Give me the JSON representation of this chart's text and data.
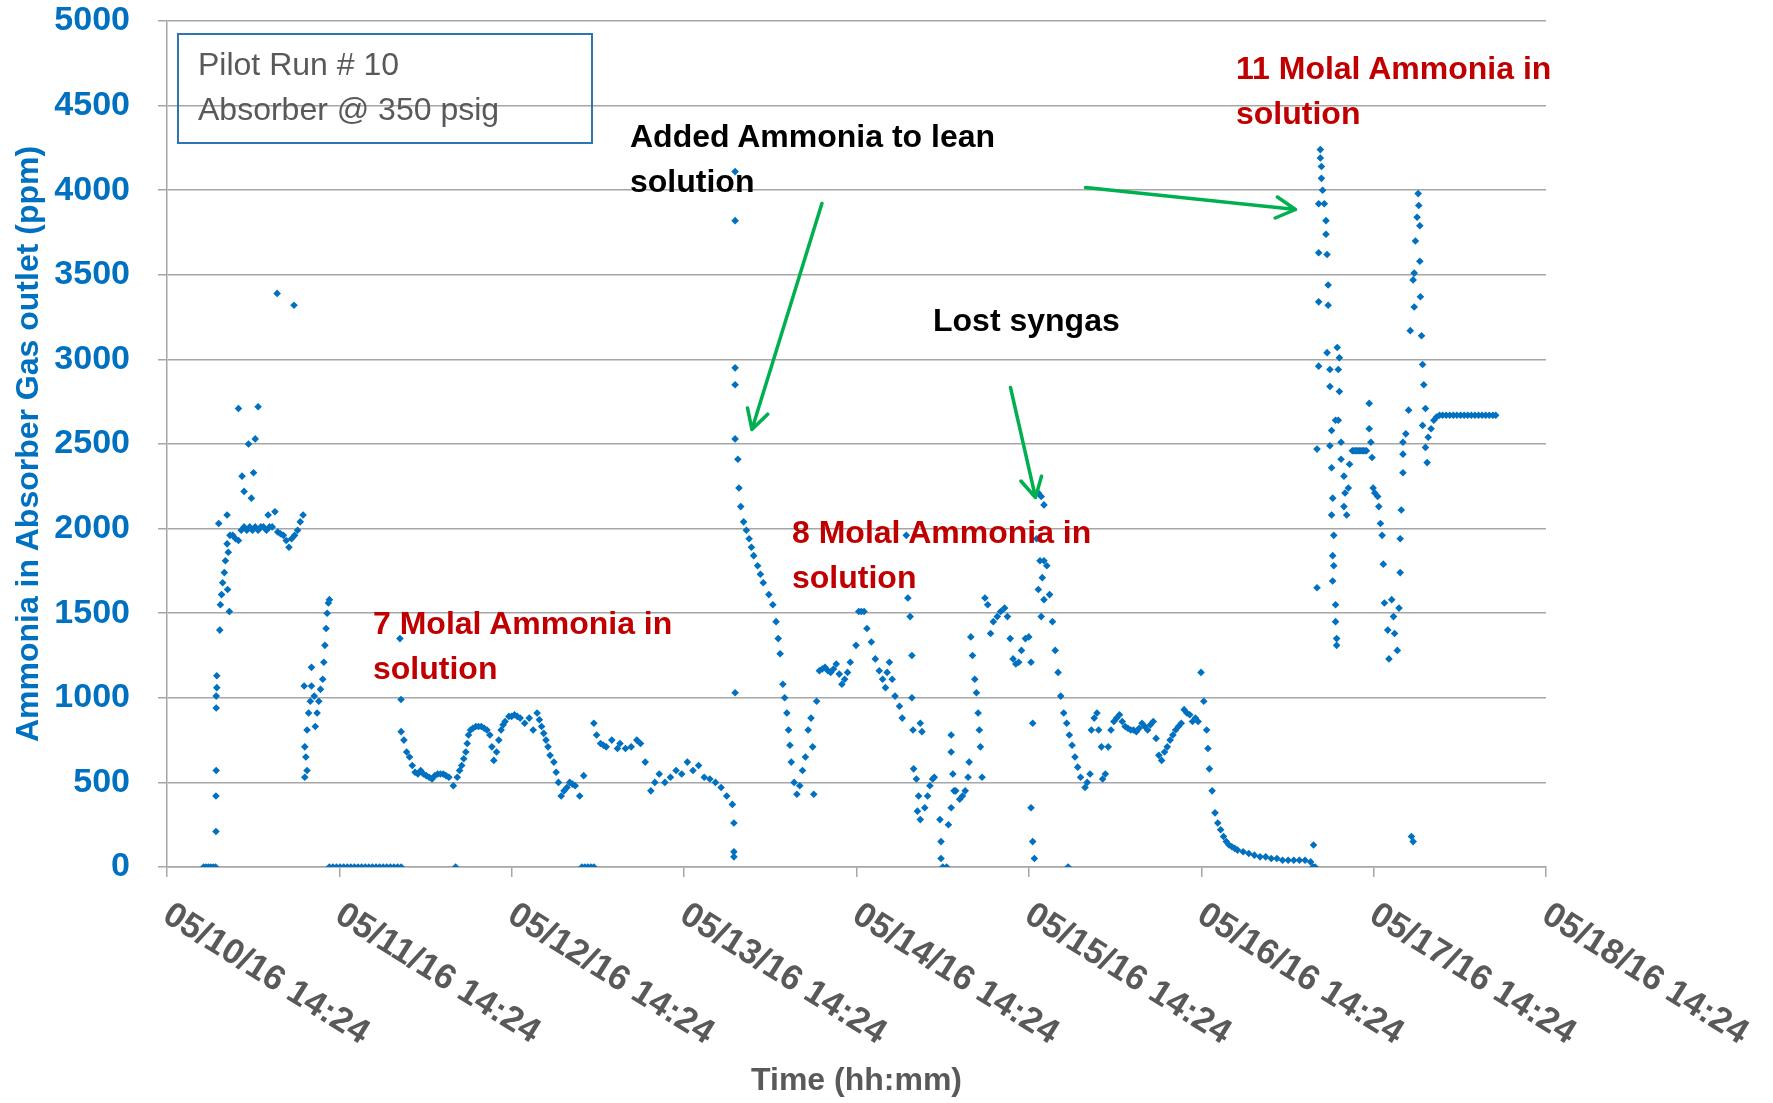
{
  "chart_data": {
    "type": "scatter",
    "title": "Pilot Run # 10",
    "subtitle": "Absorber @ 350 psig",
    "xlabel": "Time (hh:mm)",
    "ylabel": "Ammonia in Absorber Gas outlet (ppm)",
    "color": "#0070c0",
    "marker": "diamond",
    "grid": "y",
    "xlim": [
      "--05-10T14:24",
      "--05-18T14:24"
    ],
    "xticks": [
      {
        "value": "--05-10T14:24",
        "label": "05/10/16 14:24"
      },
      {
        "value": "--05-11T14:24",
        "label": "05/11/16 14:24"
      },
      {
        "value": "--05-12T14:24",
        "label": "05/12/16 14:24"
      },
      {
        "value": "--05-13T14:24",
        "label": "05/13/16 14:24"
      },
      {
        "value": "--05-14T14:24",
        "label": "05/14/16 14:24"
      },
      {
        "value": "--05-15T14:24",
        "label": "05/15/16 14:24"
      },
      {
        "value": "--05-16T14:24",
        "label": "05/16/16 14:24"
      },
      {
        "value": "--05-17T14:24",
        "label": "05/17/16 14:24"
      },
      {
        "value": "--05-18T14:24",
        "label": "05/18/16 14:24"
      }
    ],
    "ylim": [
      0,
      5000
    ],
    "yticks": [
      0,
      500,
      1000,
      1500,
      2000,
      2500,
      3000,
      3500,
      4000,
      4500,
      5000
    ],
    "annotations": [
      "Added Ammonia to lean solution",
      "Lost syngas",
      "7 Molal Ammonia in solution",
      "8 Molal Ammonia in solution",
      "11 Molal Ammonia in solution"
    ],
    "x": [
      "--05-10T19:30",
      "--05-10T19:50",
      "--05-10T20:10",
      "--05-10T20:30",
      "--05-10T20:50",
      "--05-10T21:10",
      "--05-10T21:13",
      "--05-10T21:13",
      "--05-10T21:15",
      "--05-10T21:15",
      "--05-10T21:15",
      "--05-10T21:20",
      "--05-10T21:20",
      "--05-10T21:36",
      "--05-10T21:45",
      "--05-10T21:50",
      "--05-10T22:00",
      "--05-10T22:09",
      "--05-10T22:23",
      "--05-10T22:32",
      "--05-10T22:46",
      "--05-10T22:46",
      "--05-10T22:50",
      "--05-10T22:56",
      "--05-10T23:05",
      "--05-10T23:10",
      "--05-10T23:33",
      "--05-10T23:57",
      "--05-11T00:21",
      "--05-11T00:21",
      "--05-11T00:44",
      "--05-11T00:51",
      "--05-11T01:08",
      "--05-11T01:08",
      "--05-11T01:31",
      "--05-11T01:45",
      "--05-11T01:55",
      "--05-11T02:09",
      "--05-11T02:18",
      "--05-11T02:27",
      "--05-11T02:41",
      "--05-11T02:41",
      "--05-11T03:05",
      "--05-11T03:05",
      "--05-11T03:28",
      "--05-11T03:50",
      "--05-11T04:15",
      "--05-11T04:29",
      "--05-11T04:40",
      "--05-11T05:03",
      "--05-11T05:26",
      "--05-11T05:44",
      "--05-11T05:49",
      "--05-11T06:12",
      "--05-11T06:36",
      "--05-11T07:00",
      "--05-11T07:23",
      "--05-11T07:45",
      "--05-11T08:05",
      "--05-11T08:10",
      "--05-11T08:35",
      "--05-11T08:57",
      "--05-11T09:21",
      "--05-11T09:30",
      "--05-11T09:35",
      "--05-11T09:35",
      "--05-11T09:44",
      "--05-11T09:54",
      "--05-11T09:54",
      "--05-11T10:07",
      "--05-11T10:21",
      "--05-11T10:31",
      "--05-11T10:31",
      "--05-11T10:54",
      "--05-11T11:03",
      "--05-11T11:18",
      "--05-11T11:32",
      "--05-11T11:46",
      "--05-11T12:05",
      "--05-11T12:14",
      "--05-11T12:23",
      "--05-11T12:33",
      "--05-11T12:42",
      "--05-11T12:52",
      "--05-11T13:01",
      "--05-11T13:00",
      "--05-11T13:30",
      "--05-11T14:00",
      "--05-11T14:30",
      "--05-11T15:00",
      "--05-11T15:30",
      "--05-11T16:00",
      "--05-11T16:30",
      "--05-11T17:00",
      "--05-11T17:30",
      "--05-11T18:00",
      "--05-11T18:30",
      "--05-11T19:00",
      "--05-11T19:30",
      "--05-11T20:00",
      "--05-11T20:30",
      "--05-11T21:00",
      "--05-11T21:30",
      "--05-11T22:00",
      "--05-11T22:30",
      "--05-11T23:00",
      "--05-11T22:50",
      "--05-11T22:59",
      "--05-11T23:00",
      "--05-11T23:23",
      "--05-11T23:46",
      "--05-12T00:10",
      "--05-12T00:33",
      "--05-12T00:56",
      "--05-12T01:20",
      "--05-12T01:43",
      "--05-12T02:07",
      "--05-12T02:30",
      "--05-12T02:54",
      "--05-12T03:18",
      "--05-12T03:41",
      "--05-12T04:05",
      "--05-12T04:28",
      "--05-12T04:52",
      "--05-12T05:15",
      "--05-12T05:39",
      "--05-12T06:16",
      "--05-12T06:35",
      "--05-12T06:49",
      "--05-12T07:08",
      "--05-12T07:26",
      "--05-12T07:43",
      "--05-12T08:00",
      "--05-12T08:12",
      "--05-12T08:23",
      "--05-12T08:40",
      "--05-12T09:00",
      "--05-12T09:24",
      "--05-12T09:47",
      "--05-12T10:10",
      "--05-12T10:34",
      "--05-12T10:57",
      "--05-12T11:21",
      "--05-12T11:38",
      "--05-12T11:54",
      "--05-12T12:17",
      "--05-12T12:36",
      "--05-12T12:55",
      "--05-12T13:12",
      "--05-12T13:28",
      "--05-12T14:00",
      "--05-12T14:23",
      "--05-12T14:47",
      "--05-12T15:10",
      "--05-12T15:34",
      "--05-12T16:12",
      "--05-12T16:50",
      "--05-12T17:23",
      "--05-12T17:56",
      "--05-12T18:15",
      "--05-12T18:33",
      "--05-12T18:51",
      "--05-12T19:10",
      "--05-12T19:27",
      "--05-12T19:44",
      "--05-12T20:16",
      "--05-12T20:35",
      "--05-12T20:54",
      "--05-12T21:17",
      "--05-12T21:41",
      "--05-12T22:05",
      "--05-12T22:28",
      "--05-12T22:51",
      "--05-12T23:14",
      "--05-12T23:52",
      "--05-13T00:25",
      "--05-13T00:10",
      "--05-13T00:35",
      "--05-13T01:00",
      "--05-13T01:25",
      "--05-13T01:50",
      "--05-13T01:50",
      "--05-13T02:13",
      "--05-13T02:46",
      "--05-13T03:10",
      "--05-13T03:33",
      "--05-13T04:20",
      "--05-13T05:07",
      "--05-13T05:28",
      "--05-13T06:14",
      "--05-13T07:02",
      "--05-13T07:49",
      "--05-13T08:20",
      "--05-13T08:59",
      "--05-13T09:46",
      "--05-13T10:19",
      "--05-13T10:56",
      "--05-13T11:43",
      "--05-13T12:30",
      "--05-13T13:17",
      "--05-13T14:04",
      "--05-13T14:51",
      "--05-13T15:38",
      "--05-13T16:25",
      "--05-13T17:12",
      "--05-13T17:59",
      "--05-13T18:46",
      "--05-13T19:33",
      "--05-13T20:20",
      "--05-13T21:07",
      "--05-13T21:20",
      "--05-13T21:20",
      "--05-13T21:20",
      "--05-13T21:30",
      "--05-13T21:30",
      "--05-13T21:30",
      "--05-13T21:30",
      "--05-13T21:30",
      "--05-13T21:30",
      "--05-13T21:53",
      "--05-13T22:02",
      "--05-13T22:17",
      "--05-13T22:41",
      "--05-13T23:04",
      "--05-13T23:27",
      "--05-13T23:46",
      "--05-14T00:05",
      "--05-14T00:38",
      "--05-14T01:01",
      "--05-14T01:25",
      "--05-14T02:12",
      "--05-14T02:45",
      "--05-14T03:12",
      "--05-14T03:30",
      "--05-14T03:46",
      "--05-14T04:09",
      "--05-14T04:24",
      "--05-14T04:42",
      "--05-14T04:56",
      "--05-14T05:08",
      "--05-14T05:19",
      "--05-14T05:43",
      "--05-14T06:06",
      "--05-14T06:30",
      "--05-14T06:53",
      "--05-14T07:17",
      "--05-14T07:40",
      "--05-14T08:04",
      "--05-14T08:18",
      "--05-14T08:27",
      "--05-14T08:51",
      "--05-14T09:14",
      "--05-14T09:38",
      "--05-14T10:01",
      "--05-14T10:25",
      "--05-14T10:48",
      "--05-14T11:12",
      "--05-14T11:35",
      "--05-14T12:00",
      "--05-14T12:22",
      "--05-14T12:45",
      "--05-14T13:09",
      "--05-14T13:32",
      "--05-14T14:20",
      "--05-14T14:43",
      "--05-14T15:04",
      "--05-14T15:27",
      "--05-14T15:51",
      "--05-14T16:28",
      "--05-14T17:01",
      "--05-14T17:34",
      "--05-14T18:02",
      "--05-14T18:26",
      "--05-14T18:40",
      "--05-14T18:59",
      "--05-14T19:22",
      "--05-14T19:46",
      "--05-14T20:23",
      "--05-14T20:46",
      "--05-14T21:20",
      "--05-14T21:33",
      "--05-14T21:52",
      "--05-14T22:07",
      "--05-14T22:07",
      "--05-14T22:16",
      "--05-14T22:21",
      "--05-14T22:44",
      "--05-14T22:53",
      "--05-14T23:03",
      "--05-14T23:17",
      "--05-14T23:17",
      "--05-14T23:31",
      "--05-14T23:54",
      "--05-15T00:18",
      "--05-15T00:37",
      "--05-15T01:00",
      "--05-15T01:14",
      "--05-15T02:01",
      "--05-15T02:10",
      "--05-15T02:10",
      "--05-15T02:25",
      "--05-15T02:57",
      "--05-15T03:12",
      "--05-15T03:35",
      "--05-15T03:35",
      "--05-15T03:35",
      "--05-15T03:49",
      "--05-15T03:59",
      "--05-15T04:13",
      "--05-15T04:46",
      "--05-15T05:09",
      "--05-15T05:32",
      "--05-15T05:56",
      "--05-15T06:05",
      "--05-15T06:19",
      "--05-15T06:33",
      "--05-15T06:52",
      "--05-15T07:06",
      "--05-15T07:20",
      "--05-15T07:30",
      "--05-15T07:39",
      "--05-15T07:53",
      "--05-15T08:17",
      "--05-15T08:40",
      "--05-15T09:04",
      "--05-15T09:27",
      "--05-15T10:00",
      "--05-15T10:28",
      "--05-15T11:01",
      "--05-15T11:25",
      "--05-15T11:48",
      "--05-15T12:12",
      "--05-15T12:35",
      "--05-15T12:59",
      "--05-15T13:22",
      "--05-15T13:55",
      "--05-15T14:23",
      "--05-15T14:42",
      "--05-15T14:56",
      "--05-15T14:42",
      "--05-15T14:56",
      "--05-15T15:10",
      "--05-15T15:29",
      "--05-15T15:43",
      "--05-15T15:43",
      "--05-15T15:57",
      "--05-15T16:07",
      "--05-15T16:07",
      "--05-15T16:16",
      "--05-15T16:30",
      "--05-15T16:30",
      "--05-15T16:30",
      "--05-15T16:54",
      "--05-15T17:17",
      "--05-15T17:41",
      "--05-15T18:04",
      "--05-15T18:28",
      "--05-15T18:50",
      "--05-15T19:15",
      "--05-15T19:40",
      "--05-15T19:52",
      "--05-15T20:02",
      "--05-15T20:25",
      "--05-15T20:49",
      "--05-15T21:12",
      "--05-15T21:36",
      "--05-15T22:13",
      "--05-15T22:31",
      "--05-15T22:55",
      "--05-15T23:06",
      "--05-15T23:30",
      "--05-15T23:53",
      "--05-16T00:07",
      "--05-16T00:30",
      "--05-16T00:40",
      "--05-16T01:03",
      "--05-16T01:27",
      "--05-16T01:50",
      "--05-16T02:14",
      "--05-16T02:37",
      "--05-16T03:01",
      "--05-16T03:24",
      "--05-16T03:48",
      "--05-16T04:11",
      "--05-16T04:35",
      "--05-16T04:58",
      "--05-16T05:22",
      "--05-16T05:45",
      "--05-16T06:09",
      "--05-16T06:32",
      "--05-16T06:56",
      "--05-16T07:19",
      "--05-16T07:43",
      "--05-16T08:07",
      "--05-16T08:30",
      "--05-16T08:53",
      "--05-16T09:17",
      "--05-16T09:40",
      "--05-16T10:04",
      "--05-16T10:27",
      "--05-16T10:50",
      "--05-16T11:14",
      "--05-16T11:37",
      "--05-16T12:01",
      "--05-16T12:24",
      "--05-16T12:48",
      "--05-16T13:11",
      "--05-16T13:35",
      "--05-16T13:58",
      "--05-16T14:22",
      "--05-16T14:45",
      "--05-16T15:09",
      "--05-16T15:20",
      "--05-16T15:32",
      "--05-16T15:55",
      "--05-16T16:19",
      "--05-16T16:42",
      "--05-16T17:06",
      "--05-16T17:30",
      "--05-16T17:53",
      "--05-16T18:16",
      "--05-16T18:40",
      "--05-16T19:04",
      "--05-16T19:27",
      "--05-16T20:14",
      "--05-16T21:01",
      "--05-16T21:48",
      "--05-16T22:35",
      "--05-16T23:22",
      "--05-17T00:09",
      "--05-17T00:56",
      "--05-17T01:43",
      "--05-17T02:30",
      "--05-17T03:17",
      "--05-17T04:04",
      "--05-17T04:51",
      "--05-17T05:38",
      "--05-17T05:58",
      "--05-17T06:02",
      "--05-17T06:15",
      "--05-17T06:31",
      "--05-17T06:31",
      "--05-17T06:45",
      "--05-17T06:45",
      "--05-17T06:45",
      "--05-17T06:45",
      "--05-17T06:59",
      "--05-17T06:59",
      "--05-17T07:08",
      "--05-17T07:08",
      "--05-17T07:18",
      "--05-17T07:32",
      "--05-17T07:46",
      "--05-17T07:46",
      "--05-17T07:55",
      "--05-17T07:55",
      "--05-17T08:04",
      "--05-17T08:04",
      "--05-17T08:19",
      "--05-17T08:19",
      "--05-17T08:19",
      "--05-17T08:33",
      "--05-17T08:33",
      "--05-17T08:33",
      "--05-17T08:42",
      "--05-17T08:42",
      "--05-17T08:42",
      "--05-17T08:51",
      "--05-17T08:51",
      "--05-17T09:06",
      "--05-17T09:06",
      "--05-17T09:06",
      "--05-17T09:15",
      "--05-17T09:15",
      "--05-17T09:20",
      "--05-17T09:29",
      "--05-17T09:29",
      "--05-17T09:38",
      "--05-17T09:38",
      "--05-17T09:52",
      "--05-17T09:52",
      "--05-17T10:16",
      "--05-17T10:16",
      "--05-17T10:25",
      "--05-17T10:39",
      "--05-17T10:53",
      "--05-17T11:03",
      "--05-17T11:26",
      "--05-17T11:38",
      "--05-17T11:50",
      "--05-17T12:01",
      "--05-17T12:13",
      "--05-17T12:25",
      "--05-17T12:37",
      "--05-17T12:49",
      "--05-17T13:00",
      "--05-17T13:12",
      "--05-17T13:24",
      "--05-17T13:47",
      "--05-17T13:47",
      "--05-17T14:01",
      "--05-17T14:11",
      "--05-17T14:20",
      "--05-17T14:34",
      "--05-17T14:58",
      "--05-17T15:07",
      "--05-17T15:21",
      "--05-17T15:35",
      "--05-17T15:45",
      "--05-17T15:54",
      "--05-17T16:22",
      "--05-17T16:32",
      "--05-17T16:55",
      "--05-17T17:10",
      "--05-17T17:19",
      "--05-17T17:42",
      "--05-17T17:56",
      "--05-17T18:06",
      "--05-17T18:06",
      "--05-17T18:15",
      "--05-17T18:29",
      "--05-17T18:29",
      "--05-17T18:29",
      "--05-17T18:53",
      "--05-17T19:16",
      "--05-17T19:30",
      "--05-17T19:40",
      "--05-17T19:54",
      "--05-17T19:54",
      "--05-17T20:03",
      "--05-17T20:03",
      "--05-17T20:13",
      "--05-17T20:27",
      "--05-17T20:36",
      "--05-17T20:41",
      "--05-17T20:50",
      "--05-17T20:50",
      "--05-17T20:55",
      "--05-17T21:04",
      "--05-17T21:13",
      "--05-17T21:13",
      "--05-17T21:23",
      "--05-17T21:37",
      "--05-17T21:37",
      "--05-17T21:51",
      "--05-17T22:00",
      "--05-17T22:24",
      "--05-17T22:47",
      "--05-17T23:10",
      "--05-17T23:34",
      "--05-18T00:00",
      "--05-18T00:30",
      "--05-18T01:00",
      "--05-18T01:30",
      "--05-18T02:00",
      "--05-18T02:30",
      "--05-18T03:00",
      "--05-18T03:30",
      "--05-18T04:00",
      "--05-18T04:30",
      "--05-18T05:00",
      "--05-18T05:30",
      "--05-18T06:00",
      "--05-18T06:30",
      "--05-18T07:00",
      "--05-18T07:24"
    ],
    "values": [
      0,
      0,
      0,
      0,
      0,
      0,
      210,
      420,
      570,
      940,
      1010,
      1060,
      1130,
      2030,
      1400,
      1550,
      1610,
      1680,
      1740,
      1810,
      1910,
      2080,
      1640,
      1860,
      1510,
      1960,
      1960,
      1940,
      1930,
      2710,
      1990,
      2310,
      2010,
      2220,
      1990,
      2500,
      2010,
      2180,
      1990,
      2330,
      2010,
      2530,
      1990,
      2720,
      2010,
      2010,
      1990,
      2080,
      2010,
      2010,
      2100,
      3390,
      1980,
      1970,
      1960,
      1930,
      1890,
      1940,
      3320,
      1960,
      1990,
      2040,
      2080,
      1070,
      530,
      710,
      650,
      570,
      810,
      910,
      980,
      1070,
      1180,
      1010,
      830,
      910,
      980,
      1050,
      1110,
      1210,
      1310,
      1410,
      1500,
      1560,
      1580,
      0,
      0,
      0,
      0,
      0,
      0,
      0,
      0,
      0,
      0,
      0,
      0,
      0,
      0,
      0,
      0,
      0,
      0,
      0,
      0,
      0,
      1350,
      990,
      800,
      750,
      680,
      650,
      600,
      560,
      550,
      570,
      550,
      540,
      530,
      520,
      540,
      550,
      550,
      550,
      540,
      530,
      480,
      0,
      530,
      570,
      600,
      640,
      680,
      730,
      780,
      810,
      820,
      830,
      830,
      830,
      820,
      810,
      780,
      710,
      630,
      680,
      750,
      810,
      840,
      860,
      890,
      890,
      900,
      890,
      880,
      850,
      880,
      810,
      910,
      870,
      830,
      790,
      750,
      710,
      660,
      620,
      560,
      500,
      420,
      450,
      470,
      500,
      490,
      480,
      420,
      540,
      0,
      0,
      0,
      0,
      0,
      850,
      780,
      730,
      720,
      710,
      750,
      700,
      730,
      700,
      710,
      750,
      730,
      620,
      450,
      500,
      550,
      500,
      530,
      570,
      550,
      620,
      570,
      600,
      530,
      520,
      500,
      470,
      420,
      370,
      260,
      90,
      60,
      1030,
      2530,
      2850,
      2950,
      3820,
      4110,
      2410,
      2240,
      2130,
      2040,
      1990,
      1940,
      1890,
      1840,
      1780,
      1730,
      1680,
      1610,
      1550,
      1450,
      1350,
      1260,
      1080,
      1000,
      910,
      810,
      720,
      620,
      500,
      430,
      480,
      570,
      650,
      810,
      880,
      710,
      430,
      980,
      1160,
      1170,
      1180,
      1160,
      1150,
      1170,
      1200,
      1140,
      1080,
      1110,
      1150,
      1210,
      1310,
      1510,
      1510,
      1510,
      1410,
      1330,
      1230,
      1160,
      1110,
      1060,
      1150,
      1210,
      1110,
      1010,
      950,
      880,
      1960,
      1590,
      1480,
      1250,
      1000,
      810,
      580,
      520,
      330,
      420,
      280,
      850,
      800,
      350,
      420,
      480,
      520,
      530,
      280,
      150,
      50,
      0,
      0,
      250,
      780,
      680,
      350,
      550,
      450,
      450,
      400,
      420,
      450,
      530,
      620,
      1360,
      1250,
      1110,
      1030,
      910,
      810,
      710,
      530,
      1590,
      1550,
      1380,
      1450,
      1480,
      1510,
      1530,
      1480,
      1350,
      1230,
      1200,
      1210,
      1280,
      1350,
      1360,
      1210,
      850,
      350,
      150,
      50,
      1940,
      2210,
      1640,
      1810,
      2190,
      1480,
      1710,
      2140,
      1810,
      1580,
      1780,
      1610,
      1450,
      1280,
      1150,
      1010,
      910,
      850,
      0,
      780,
      720,
      650,
      590,
      530,
      470,
      500,
      550,
      810,
      880,
      910,
      810,
      710,
      520,
      550,
      710,
      810,
      860,
      880,
      900,
      860,
      830,
      820,
      810,
      810,
      800,
      820,
      850,
      830,
      810,
      840,
      860,
      760,
      660,
      630,
      680,
      710,
      750,
      780,
      810,
      830,
      850,
      930,
      910,
      900,
      860,
      880,
      860,
      1150,
      980,
      810,
      700,
      580,
      450,
      320,
      260,
      220,
      180,
      150,
      130,
      120,
      110,
      100,
      90,
      80,
      70,
      60,
      60,
      50,
      50,
      40,
      40,
      40,
      40,
      40,
      30,
      0,
      130,
      0,
      1650,
      2470,
      2960,
      3340,
      3630,
      3920,
      4240,
      4190,
      4140,
      4070,
      4000,
      3920,
      3820,
      3740,
      3620,
      3040,
      3440,
      3320,
      2940,
      2840,
      2490,
      2580,
      2360,
      2080,
      2180,
      1840,
      1690,
      1960,
      1780,
      1550,
      1450,
      2640,
      1350,
      1310,
      3070,
      2940,
      2640,
      3010,
      2810,
      2510,
      2410,
      2310,
      2130,
      2210,
      2080,
      2240,
      2380,
      2460,
      2460,
      2460,
      2460,
      2460,
      2460,
      2460,
      2460,
      2460,
      2460,
      2460,
      2740,
      2590,
      2510,
      2420,
      2240,
      2210,
      2190,
      2130,
      2030,
      1960,
      1790,
      1560,
      1400,
      1230,
      1580,
      1480,
      1380,
      1280,
      1530,
      1740,
      1940,
      2110,
      2330,
      2440,
      2510,
      2560,
      2700,
      3170,
      180,
      150,
      3470,
      3510,
      3310,
      3700,
      3840,
      3980,
      3910,
      3790,
      3580,
      3370,
      3140,
      2970,
      2610,
      2850,
      2710,
      2480,
      2390,
      2540,
      2590,
      2640,
      2660,
      2670,
      2670,
      2670,
      2670,
      2670,
      2670,
      2670,
      2670,
      2670,
      2670,
      2670,
      2670,
      2670,
      2670,
      2670,
      2670,
      2670
    ]
  }
}
